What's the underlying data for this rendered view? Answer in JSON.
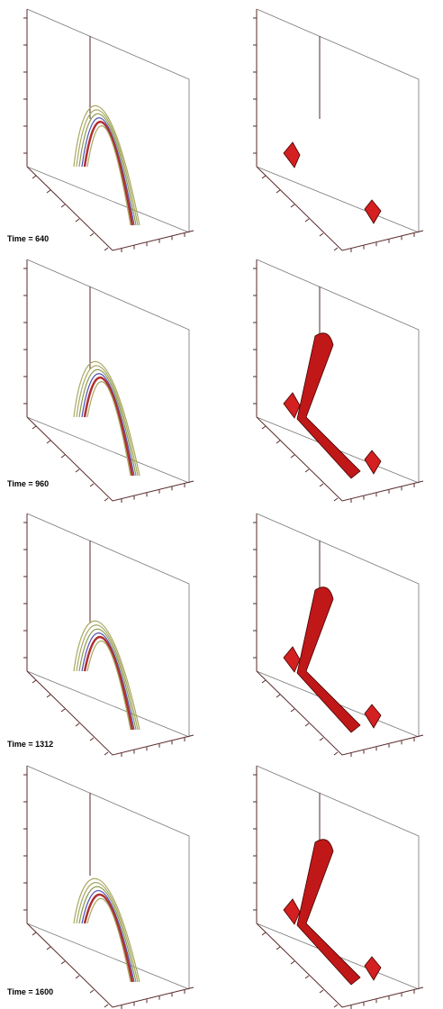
{
  "rows": [
    {
      "label": "Time = 640"
    },
    {
      "label": "Time = 960"
    },
    {
      "label": "Time = 1312"
    },
    {
      "label": "Time = 1600"
    }
  ]
}
